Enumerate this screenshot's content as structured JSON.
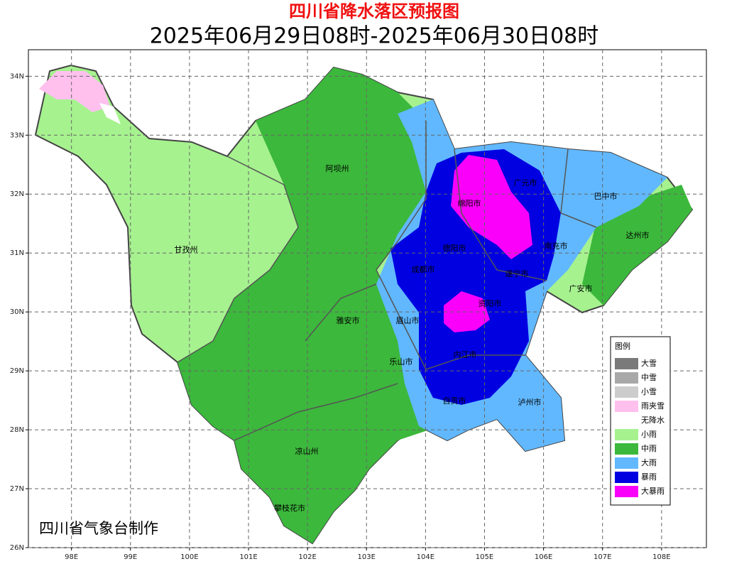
{
  "title": "四川省降水落区预报图",
  "subtitle": "2025年06月29日08时-2025年06月30日08时",
  "credit": "四川省气象台制作",
  "axes": {
    "xlim": [
      97.27,
      108.76
    ],
    "ylim": [
      26,
      34.45
    ],
    "xticks": [
      {
        "value": 98,
        "label": "98E"
      },
      {
        "value": 99,
        "label": "99E"
      },
      {
        "value": 100,
        "label": "100E"
      },
      {
        "value": 101,
        "label": "101E"
      },
      {
        "value": 102,
        "label": "102E"
      },
      {
        "value": 103,
        "label": "103E"
      },
      {
        "value": 104,
        "label": "104E"
      },
      {
        "value": 105,
        "label": "105E"
      },
      {
        "value": 106,
        "label": "106E"
      },
      {
        "value": 107,
        "label": "107E"
      },
      {
        "value": 108,
        "label": "108E"
      }
    ],
    "yticks": [
      {
        "value": 26,
        "label": "26N"
      },
      {
        "value": 27,
        "label": "27N"
      },
      {
        "value": 28,
        "label": "28N"
      },
      {
        "value": 29,
        "label": "29N"
      },
      {
        "value": 30,
        "label": "30N"
      },
      {
        "value": 31,
        "label": "31N"
      },
      {
        "value": 32,
        "label": "32N"
      },
      {
        "value": 33,
        "label": "33N"
      },
      {
        "value": 34,
        "label": "34N"
      }
    ],
    "grid": true
  },
  "regions": [
    "阿坝州",
    "甘孜州",
    "绵阳市",
    "广元市",
    "巴中市",
    "达州市",
    "南充市",
    "德阳市",
    "成都市",
    "遂宁市",
    "广安市",
    "雅安市",
    "眉山市",
    "资阳市",
    "乐山市",
    "内江市",
    "自贡市",
    "泸州市",
    "凉山州",
    "攀枝花市"
  ],
  "legend": {
    "title": "图例",
    "items": [
      {
        "label": "大雪",
        "color": "#7a7a7a"
      },
      {
        "label": "中雪",
        "color": "#a8a8a8"
      },
      {
        "label": "小雪",
        "color": "#cccccc"
      },
      {
        "label": "雨夹雪",
        "color": "#ffc0ee"
      },
      {
        "label": "无降水",
        "color": "#ffffff"
      },
      {
        "label": "小雨",
        "color": "#a6f28f"
      },
      {
        "label": "中雨",
        "color": "#3cb83c"
      },
      {
        "label": "大雨",
        "color": "#61b8ff"
      },
      {
        "label": "暴雨",
        "color": "#0000e1"
      },
      {
        "label": "大暴雨",
        "color": "#fa00fa"
      }
    ]
  }
}
